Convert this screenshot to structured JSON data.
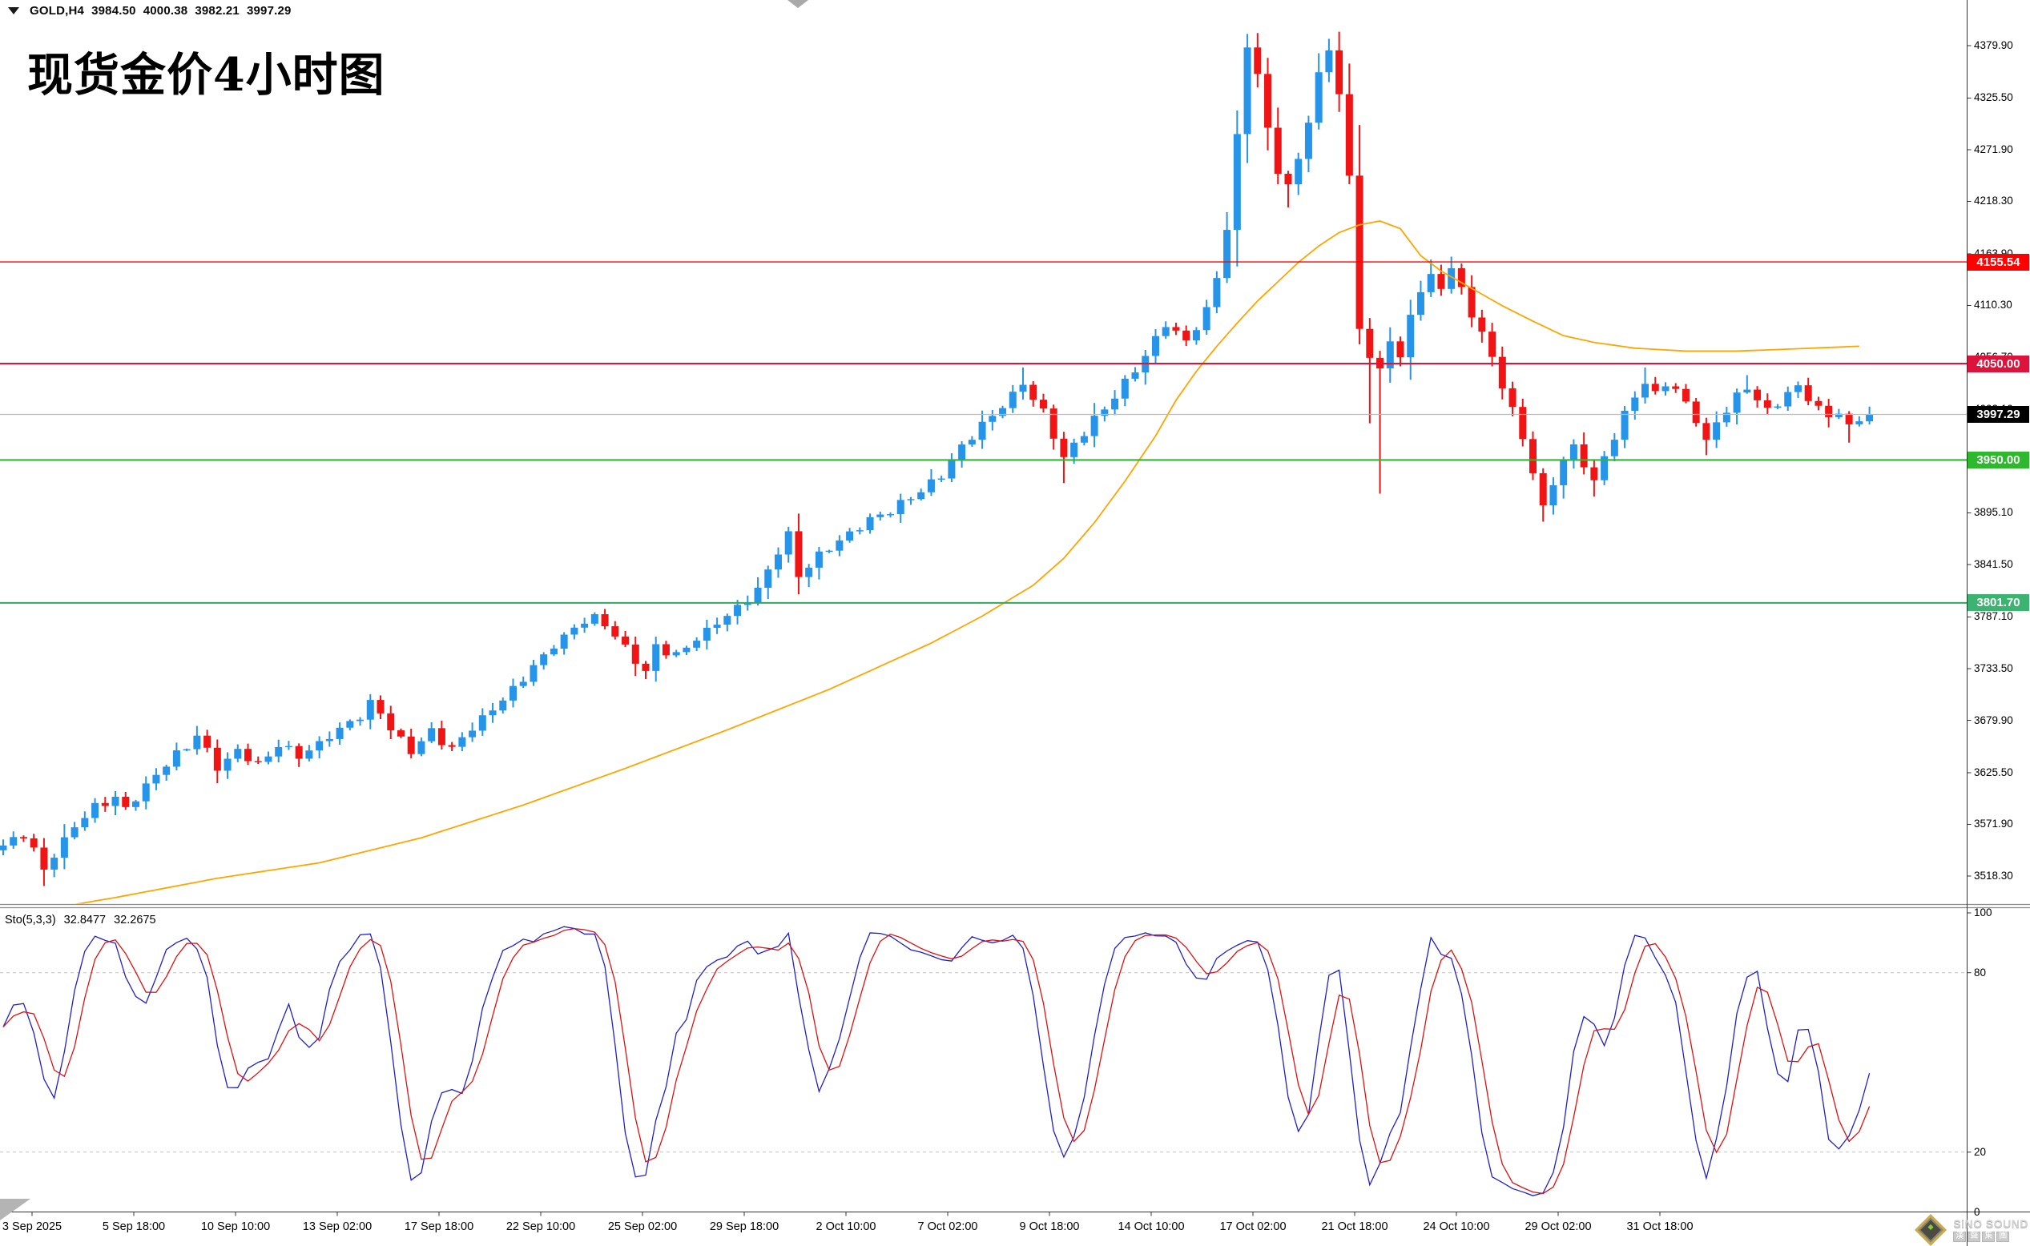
{
  "header": {
    "symbol_period": "GOLD,H4",
    "open": "3984.50",
    "high": "4000.38",
    "low": "3982.21",
    "close": "3997.29"
  },
  "title": "现货金价4小时图",
  "watermark": {
    "line1": "SiNO SOUND",
    "line2": "漢聲集團"
  },
  "indicator_panel": {
    "label": "Sto(5,3,3)",
    "k_value": "32.8477",
    "d_value": "32.2675",
    "axis_labels": [
      {
        "v": 100,
        "t": "100"
      },
      {
        "v": 80,
        "t": "80"
      },
      {
        "v": 20,
        "t": "20"
      },
      {
        "v": 0,
        "t": "0"
      }
    ]
  },
  "price_axis_labels": [
    "4379.90",
    "4325.50",
    "4271.90",
    "4218.30",
    "4163.90",
    "4110.30",
    "4056.70",
    "4003.10",
    "3949.50",
    "3895.10",
    "3841.50",
    "3787.10",
    "3733.50",
    "3679.90",
    "3625.50",
    "3571.90",
    "3518.30"
  ],
  "time_axis_labels": [
    "3 Sep 2025",
    "5 Sep 18:00",
    "10 Sep 10:00",
    "13 Sep 02:00",
    "17 Sep 18:00",
    "22 Sep 10:00",
    "25 Sep 02:00",
    "29 Sep 18:00",
    "2 Oct 10:00",
    "7 Oct 02:00",
    "9 Oct 18:00",
    "14 Oct 10:00",
    "17 Oct 02:00",
    "21 Oct 18:00",
    "24 Oct 10:00",
    "29 Oct 02:00",
    "31 Oct 18:00"
  ],
  "chart_data": {
    "type": "candlestick",
    "symbol": "GOLD",
    "timeframe": "H4",
    "title": "现货金价4小时图",
    "bars_total": 184,
    "last_bar_ohlc": {
      "open": 3984.5,
      "high": 4000.38,
      "low": 3982.21,
      "close": 3997.29
    },
    "y_axis": {
      "top_price": 4379.9,
      "bottom_price": 3518.3,
      "visible_min": 3490,
      "visible_max": 4398
    },
    "x_axis": {
      "bars_per_tick": 10,
      "grid": false
    },
    "colors": {
      "up": "#2694E8",
      "down": "#F01414",
      "ma": "#FFA500",
      "sto_k": "#2020C8",
      "sto_d": "#E01010",
      "current_line": "#BBBBBB"
    },
    "close_waypoints": [
      [
        0,
        3550
      ],
      [
        2,
        3560
      ],
      [
        3,
        3545
      ],
      [
        4,
        3525
      ],
      [
        5,
        3542
      ],
      [
        7,
        3570
      ],
      [
        9,
        3590
      ],
      [
        11,
        3600
      ],
      [
        12,
        3588
      ],
      [
        14,
        3612
      ],
      [
        16,
        3634
      ],
      [
        18,
        3652
      ],
      [
        19,
        3665
      ],
      [
        20,
        3648
      ],
      [
        21,
        3630
      ],
      [
        23,
        3648
      ],
      [
        25,
        3632
      ],
      [
        27,
        3654
      ],
      [
        29,
        3642
      ],
      [
        31,
        3656
      ],
      [
        33,
        3670
      ],
      [
        35,
        3686
      ],
      [
        36,
        3701
      ],
      [
        37,
        3688
      ],
      [
        38,
        3672
      ],
      [
        40,
        3648
      ],
      [
        42,
        3668
      ],
      [
        44,
        3650
      ],
      [
        46,
        3673
      ],
      [
        48,
        3692
      ],
      [
        50,
        3713
      ],
      [
        52,
        3736
      ],
      [
        54,
        3757
      ],
      [
        56,
        3776
      ],
      [
        58,
        3790
      ],
      [
        60,
        3768
      ],
      [
        62,
        3743
      ],
      [
        63,
        3730
      ],
      [
        64,
        3757
      ],
      [
        66,
        3747
      ],
      [
        68,
        3765
      ],
      [
        70,
        3781
      ],
      [
        72,
        3796
      ],
      [
        74,
        3816
      ],
      [
        76,
        3855
      ],
      [
        77,
        3872
      ],
      [
        78,
        3830
      ],
      [
        80,
        3852
      ],
      [
        82,
        3866
      ],
      [
        84,
        3881
      ],
      [
        86,
        3893
      ],
      [
        88,
        3904
      ],
      [
        90,
        3918
      ],
      [
        92,
        3936
      ],
      [
        94,
        3963
      ],
      [
        96,
        3986
      ],
      [
        98,
        4006
      ],
      [
        100,
        4028
      ],
      [
        102,
        3999
      ],
      [
        103,
        3976
      ],
      [
        104,
        3953
      ],
      [
        106,
        3979
      ],
      [
        108,
        4003
      ],
      [
        110,
        4031
      ],
      [
        112,
        4058
      ],
      [
        114,
        4091
      ],
      [
        116,
        4073
      ],
      [
        118,
        4106
      ],
      [
        119,
        4140
      ],
      [
        120,
        4190
      ],
      [
        121,
        4285
      ],
      [
        122,
        4378
      ],
      [
        123,
        4350
      ],
      [
        124,
        4292
      ],
      [
        125,
        4252
      ],
      [
        126,
        4236
      ],
      [
        127,
        4262
      ],
      [
        128,
        4302
      ],
      [
        129,
        4347
      ],
      [
        130,
        4375
      ],
      [
        131,
        4331
      ],
      [
        132,
        4241
      ],
      [
        133,
        4086
      ],
      [
        134,
        4056
      ],
      [
        135,
        4045
      ],
      [
        136,
        4078
      ],
      [
        137,
        4052
      ],
      [
        138,
        4101
      ],
      [
        139,
        4126
      ],
      [
        140,
        4143
      ],
      [
        141,
        4131
      ],
      [
        142,
        4149
      ],
      [
        143,
        4126
      ],
      [
        144,
        4101
      ],
      [
        145,
        4081
      ],
      [
        146,
        4056
      ],
      [
        147,
        4029
      ],
      [
        148,
        4001
      ],
      [
        149,
        3973
      ],
      [
        150,
        3939
      ],
      [
        151,
        3903
      ],
      [
        152,
        3926
      ],
      [
        153,
        3949
      ],
      [
        154,
        3963
      ],
      [
        155,
        3946
      ],
      [
        156,
        3929
      ],
      [
        157,
        3953
      ],
      [
        158,
        3976
      ],
      [
        159,
        3996
      ],
      [
        160,
        4016
      ],
      [
        161,
        4029
      ],
      [
        162,
        4019
      ],
      [
        163,
        4031
      ],
      [
        164,
        4023
      ],
      [
        165,
        4009
      ],
      [
        166,
        3991
      ],
      [
        167,
        3971
      ],
      [
        168,
        3989
      ],
      [
        169,
        4003
      ],
      [
        170,
        4015
      ],
      [
        171,
        4023
      ],
      [
        172,
        4013
      ],
      [
        173,
        4001
      ],
      [
        174,
        4011
      ],
      [
        175,
        4019
      ],
      [
        176,
        4025
      ],
      [
        177,
        4015
      ],
      [
        178,
        4003
      ],
      [
        179,
        3995
      ],
      [
        180,
        4000
      ],
      [
        181,
        3987
      ],
      [
        182,
        3993
      ],
      [
        183,
        3997.3
      ]
    ],
    "wick_overrides": {
      "4": {
        "low": 3508
      },
      "36": {
        "high": 3707
      },
      "58": {
        "high": 3792
      },
      "100": {
        "high": 4046
      },
      "104": {
        "low": 3926
      },
      "122": {
        "high": 4392
      },
      "126": {
        "low": 4212
      },
      "130": {
        "high": 4387
      },
      "133": {
        "low": 4070
      },
      "134": {
        "low": 3988
      },
      "135": {
        "low": 3915
      },
      "140": {
        "high": 4158
      },
      "142": {
        "high": 4161
      },
      "151": {
        "low": 3886
      },
      "156": {
        "low": 3912
      },
      "161": {
        "high": 4046
      },
      "167": {
        "low": 3955
      },
      "171": {
        "high": 4038
      },
      "181": {
        "low": 3968
      }
    },
    "ma_waypoints": [
      [
        6,
        3487
      ],
      [
        11,
        3496
      ],
      [
        21,
        3516
      ],
      [
        31,
        3532
      ],
      [
        41,
        3558
      ],
      [
        51,
        3592
      ],
      [
        61,
        3630
      ],
      [
        71,
        3670
      ],
      [
        81,
        3712
      ],
      [
        91,
        3760
      ],
      [
        96,
        3788
      ],
      [
        101,
        3820
      ],
      [
        104,
        3848
      ],
      [
        107,
        3885
      ],
      [
        110,
        3928
      ],
      [
        113,
        3975
      ],
      [
        115,
        4012
      ],
      [
        117,
        4042
      ],
      [
        119,
        4068
      ],
      [
        121,
        4092
      ],
      [
        123,
        4115
      ],
      [
        125,
        4135
      ],
      [
        127,
        4155
      ],
      [
        129,
        4172
      ],
      [
        131,
        4186
      ],
      [
        133,
        4194
      ],
      [
        135,
        4198
      ],
      [
        137,
        4190
      ],
      [
        139,
        4162
      ],
      [
        141,
        4146
      ],
      [
        144,
        4128
      ],
      [
        147,
        4110
      ],
      [
        150,
        4094
      ],
      [
        153,
        4079
      ],
      [
        156,
        4072
      ],
      [
        160,
        4066
      ],
      [
        165,
        4063
      ],
      [
        170,
        4063
      ],
      [
        175,
        4065
      ],
      [
        182,
        4068
      ]
    ],
    "stochastic": {
      "settings": "(5,3,3)",
      "k_period": 5,
      "d_period": 3,
      "slowing": 3,
      "k_last": 32.8477,
      "d_last": 32.2675,
      "levels": [
        20,
        80
      ],
      "range": [
        0,
        100
      ]
    },
    "horizontal_levels": [
      {
        "label": "4155.54",
        "price": 4155.54,
        "line_color": "#FF0000",
        "badge_color": "#FF0000",
        "width": 1.4,
        "kind": "resistance"
      },
      {
        "label": "4050.00",
        "price": 4050.0,
        "line_color": "#DC143C",
        "badge_color": "#DC143C",
        "width": 2.2,
        "kind": "resistance"
      },
      {
        "label": "3997.29",
        "price": 3997.29,
        "line_color": "#BBBBBB",
        "badge_color": "#000000",
        "width": 1.3,
        "kind": "current"
      },
      {
        "label": "3950.00",
        "price": 3950.0,
        "line_color": "#2DB82D",
        "badge_color": "#2DB82D",
        "width": 2.2,
        "kind": "support"
      },
      {
        "label": "3801.70",
        "price": 3801.7,
        "line_color": "#2FA860",
        "badge_color": "#3CB371",
        "width": 2.0,
        "kind": "support"
      }
    ]
  }
}
